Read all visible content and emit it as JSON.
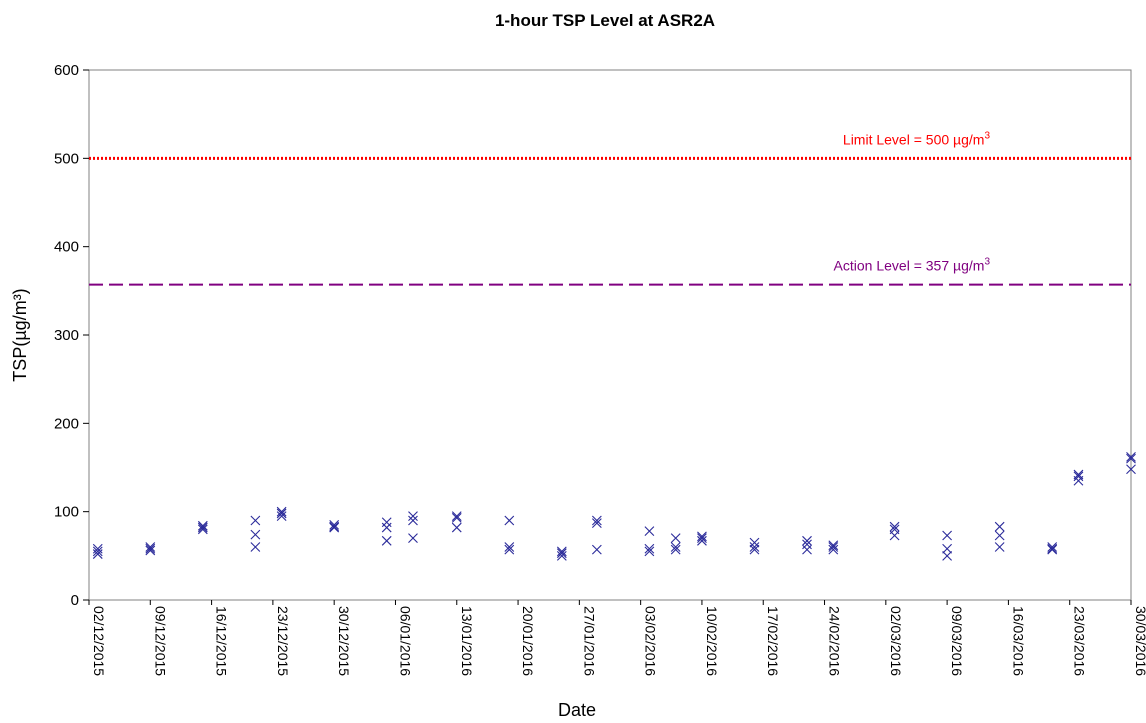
{
  "chart_data": {
    "type": "scatter",
    "title": "1-hour TSP Level at ASR2A",
    "xlabel": "Date",
    "ylabel": "TSP(µg/m³)",
    "ylim": [
      0,
      600
    ],
    "yticks": [
      0,
      100,
      200,
      300,
      400,
      500,
      600
    ],
    "xlim": [
      "2015-12-02",
      "2016-03-30"
    ],
    "xtick_labels": [
      "02/12/2015",
      "09/12/2015",
      "16/12/2015",
      "23/12/2015",
      "30/12/2015",
      "06/01/2016",
      "13/01/2016",
      "20/01/2016",
      "27/01/2016",
      "03/02/2016",
      "10/02/2016",
      "17/02/2016",
      "24/02/2016",
      "02/03/2016",
      "09/03/2016",
      "16/03/2016",
      "23/03/2016",
      "30/03/2016"
    ],
    "grid": false,
    "reference_lines": [
      {
        "label": "Limit Level = 500 µg/m",
        "sup": "3",
        "value": 500,
        "color": "#ff0000",
        "style": "dotted"
      },
      {
        "label": "Action Level = 357 µg/m",
        "sup": "3",
        "value": 357,
        "color": "#800080",
        "style": "dashed"
      }
    ],
    "marker_color": "#2b2b9a",
    "series": [
      {
        "x": [
          "2015-12-03",
          "2015-12-03",
          "2015-12-03",
          "2015-12-09",
          "2015-12-09",
          "2015-12-09",
          "2015-12-15",
          "2015-12-15",
          "2015-12-15",
          "2015-12-21",
          "2015-12-21",
          "2015-12-21",
          "2015-12-24",
          "2015-12-24",
          "2015-12-24",
          "2015-12-30",
          "2015-12-30",
          "2015-12-30",
          "2016-01-05",
          "2016-01-05",
          "2016-01-05",
          "2016-01-08",
          "2016-01-08",
          "2016-01-08",
          "2016-01-13",
          "2016-01-13",
          "2016-01-13",
          "2016-01-19",
          "2016-01-19",
          "2016-01-19",
          "2016-01-25",
          "2016-01-25",
          "2016-01-25",
          "2016-01-29",
          "2016-01-29",
          "2016-01-29",
          "2016-02-04",
          "2016-02-04",
          "2016-02-04",
          "2016-02-07",
          "2016-02-07",
          "2016-02-07",
          "2016-02-10",
          "2016-02-10",
          "2016-02-10",
          "2016-02-16",
          "2016-02-16",
          "2016-02-16",
          "2016-02-22",
          "2016-02-22",
          "2016-02-22",
          "2016-02-25",
          "2016-02-25",
          "2016-02-25",
          "2016-03-03",
          "2016-03-03",
          "2016-03-03",
          "2016-03-09",
          "2016-03-09",
          "2016-03-09",
          "2016-03-15",
          "2016-03-15",
          "2016-03-15",
          "2016-03-21",
          "2016-03-21",
          "2016-03-21",
          "2016-03-24",
          "2016-03-24",
          "2016-03-24",
          "2016-03-30",
          "2016-03-30",
          "2016-03-30"
        ],
        "y": [
          52,
          58,
          55,
          56,
          60,
          58,
          80,
          84,
          82,
          60,
          74,
          90,
          95,
          100,
          98,
          82,
          85,
          83,
          67,
          82,
          88,
          70,
          90,
          95,
          82,
          95,
          93,
          57,
          60,
          90,
          50,
          53,
          55,
          57,
          87,
          90,
          55,
          58,
          78,
          57,
          60,
          70,
          67,
          70,
          72,
          57,
          60,
          65,
          57,
          63,
          67,
          57,
          60,
          62,
          73,
          80,
          83,
          50,
          58,
          73,
          60,
          73,
          83,
          57,
          60,
          58,
          135,
          140,
          142,
          148,
          160,
          162
        ]
      }
    ]
  }
}
